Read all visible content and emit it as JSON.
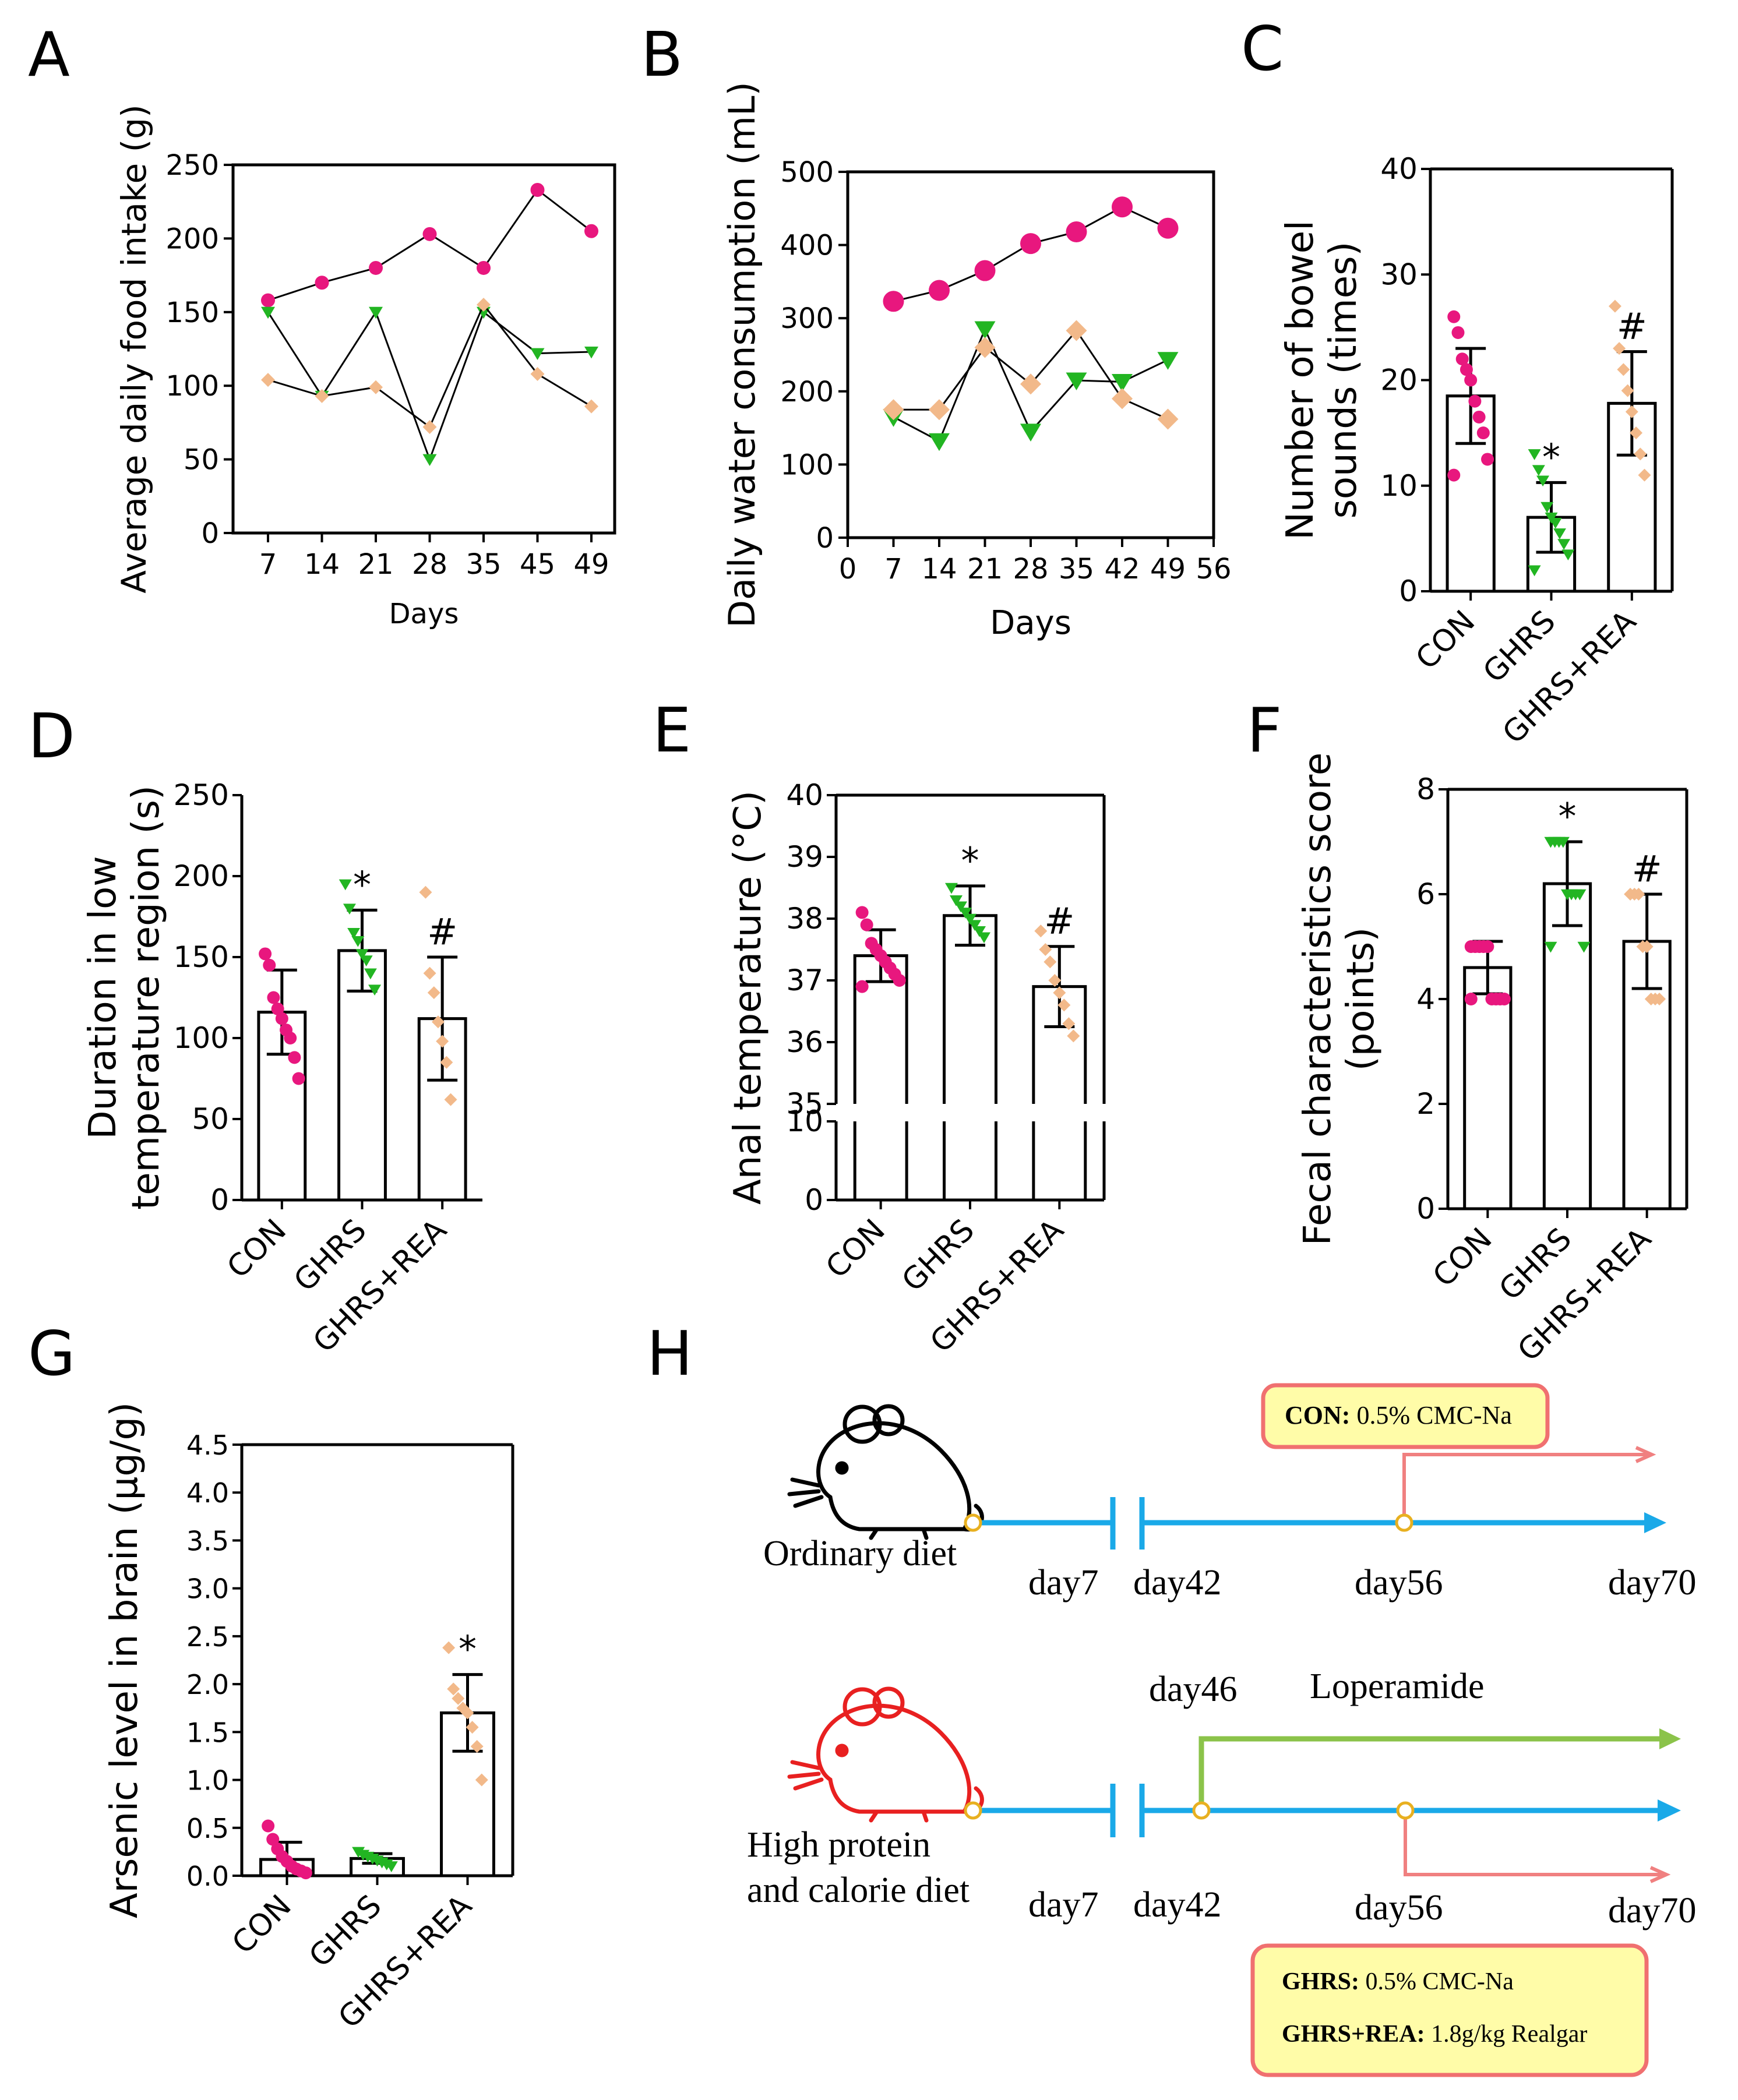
{
  "colors": {
    "con": "#e8177e",
    "ghrs": "#22b522",
    "rea": "#f2b98a",
    "axis": "#000000",
    "timeline": "#1aa9e8",
    "branch": "#f08080",
    "loperamide": "#8bc34a",
    "box_fill": "#fffca8",
    "box_border": "#f07070",
    "mouse_ordinary": "#000000",
    "mouse_high": "#e82020"
  },
  "chart_data": [
    {
      "panel": "A",
      "type": "line",
      "ylabel": "Average daily food intake (g)",
      "xlabel": "Days",
      "ylim": [
        0,
        250
      ],
      "yticks": [
        0,
        50,
        100,
        150,
        200,
        250
      ],
      "categories": [
        "7",
        "14",
        "21",
        "28",
        "35",
        "45",
        "49"
      ],
      "series": [
        {
          "name": "CON",
          "marker": "circle",
          "values": [
            158,
            170,
            180,
            203,
            180,
            233,
            205
          ]
        },
        {
          "name": "GHRS",
          "marker": "triangle",
          "values": [
            150,
            93,
            150,
            50,
            150,
            122,
            123
          ]
        },
        {
          "name": "GHRS+REA",
          "marker": "diamond",
          "values": [
            104,
            93,
            99,
            72,
            155,
            108,
            86
          ]
        }
      ]
    },
    {
      "panel": "B",
      "type": "line",
      "ylabel": "Daily water consumption (mL)",
      "xlabel": "Days",
      "ylim": [
        0,
        500
      ],
      "yticks": [
        0,
        100,
        200,
        300,
        400,
        500
      ],
      "xlim": [
        0,
        56
      ],
      "xticks": [
        0,
        7,
        14,
        21,
        28,
        35,
        42,
        49,
        56
      ],
      "series": [
        {
          "name": "CON",
          "marker": "circle",
          "x": [
            7,
            14,
            21,
            28,
            35,
            42,
            49
          ],
          "values": [
            323,
            338,
            365,
            402,
            418,
            452,
            423
          ]
        },
        {
          "name": "GHRS",
          "marker": "triangle",
          "x": [
            7,
            14,
            21,
            28,
            35,
            42,
            49
          ],
          "values": [
            165,
            132,
            285,
            145,
            215,
            213,
            243
          ]
        },
        {
          "name": "GHRS+REA",
          "marker": "diamond",
          "x": [
            7,
            14,
            21,
            28,
            35,
            42,
            49
          ],
          "values": [
            175,
            175,
            260,
            210,
            283,
            190,
            162
          ]
        }
      ]
    },
    {
      "panel": "C",
      "type": "bar",
      "ylabel": "Number of bowel sounds (times)",
      "ylim": [
        0,
        40
      ],
      "yticks": [
        0,
        10,
        20,
        30,
        40
      ],
      "categories": [
        "CON",
        "GHRS",
        "GHRS+REA"
      ],
      "values": [
        18.5,
        7,
        17.8
      ],
      "errors": [
        4.5,
        3.3,
        4.9
      ],
      "annotations": [
        "",
        "*",
        "#"
      ],
      "points": [
        [
          26,
          24.5,
          22,
          21,
          20,
          18,
          16.5,
          15,
          12.5,
          11
        ],
        [
          13,
          11.5,
          10.5,
          8,
          7,
          6.5,
          5.5,
          4.5,
          3.5,
          2
        ],
        [
          27,
          23,
          21,
          19,
          17,
          15,
          13,
          11
        ]
      ]
    },
    {
      "panel": "D",
      "type": "bar",
      "ylabel": "Duration in low temperature region (s)",
      "ylim": [
        0,
        250
      ],
      "yticks": [
        0,
        50,
        100,
        150,
        200,
        250
      ],
      "categories": [
        "CON",
        "GHRS",
        "GHRS+REA"
      ],
      "values": [
        116,
        154,
        112
      ],
      "errors": [
        26,
        25,
        38
      ],
      "annotations": [
        "",
        "*",
        "#"
      ],
      "points": [
        [
          152,
          145,
          125,
          118,
          112,
          105,
          100,
          88,
          75
        ],
        [
          195,
          180,
          165,
          160,
          152,
          148,
          140,
          130
        ],
        [
          190,
          140,
          128,
          110,
          98,
          85,
          62
        ]
      ]
    },
    {
      "panel": "E",
      "type": "bar",
      "broken_axis": true,
      "ylabel": "Anal temperature (°C)",
      "yticks_low": [
        0,
        10
      ],
      "yticks_high": [
        35,
        36,
        37,
        38,
        39,
        40
      ],
      "categories": [
        "CON",
        "GHRS",
        "GHRS+REA"
      ],
      "values": [
        37.4,
        38.05,
        36.9
      ],
      "errors": [
        0.42,
        0.48,
        0.65
      ],
      "annotations": [
        "",
        "*",
        "#"
      ],
      "points": [
        [
          38.1,
          37.9,
          37.6,
          37.5,
          37.4,
          37.3,
          37.2,
          37.1,
          37.0,
          36.9
        ],
        [
          38.5,
          38.3,
          38.2,
          38.1,
          38.0,
          37.9,
          37.8,
          37.7
        ],
        [
          37.8,
          37.5,
          37.3,
          37.0,
          36.8,
          36.6,
          36.3,
          36.1
        ]
      ]
    },
    {
      "panel": "F",
      "type": "bar",
      "ylabel": "Fecal characteristics score (points)",
      "ylim": [
        0,
        8
      ],
      "yticks": [
        0,
        2,
        4,
        6,
        8
      ],
      "categories": [
        "CON",
        "GHRS",
        "GHRS+REA"
      ],
      "values": [
        4.6,
        6.2,
        5.1
      ],
      "errors": [
        0.5,
        0.8,
        0.9
      ],
      "annotations": [
        "",
        "*",
        "#"
      ],
      "points": [
        [
          5,
          5,
          5,
          5,
          5,
          4,
          4,
          4,
          4,
          4
        ],
        [
          7,
          7,
          7,
          7,
          6,
          6,
          6,
          6,
          5,
          5
        ],
        [
          6,
          6,
          6,
          5,
          5,
          4,
          4,
          4
        ]
      ]
    },
    {
      "panel": "G",
      "type": "bar",
      "ylabel": "Arsenic level in brain (μg/g)",
      "ylim": [
        0,
        4.5
      ],
      "yticks": [
        "0.0",
        "0.5",
        "1.0",
        "1.5",
        "2.0",
        "2.5",
        "3.0",
        "3.5",
        "4.0",
        "4.5"
      ],
      "categories": [
        "CON",
        "GHRS",
        "GHRS+REA"
      ],
      "values": [
        0.17,
        0.18,
        1.7
      ],
      "errors": [
        0.18,
        0.05,
        0.4
      ],
      "annotations": [
        "",
        "",
        "*"
      ],
      "points": [
        [
          0.52,
          0.38,
          0.28,
          0.2,
          0.15,
          0.1,
          0.07,
          0.05,
          0.03
        ],
        [
          0.25,
          0.22,
          0.2,
          0.18,
          0.16,
          0.14,
          0.12,
          0.1
        ],
        [
          2.38,
          1.95,
          1.85,
          1.75,
          1.7,
          1.55,
          1.35,
          1.0
        ]
      ]
    }
  ],
  "panel_labels": [
    "A",
    "B",
    "C",
    "D",
    "E",
    "F",
    "G",
    "H"
  ],
  "timeline": {
    "con_box": {
      "label": "CON:",
      "text": " 0.5% CMC-Na"
    },
    "ordinary_label": "Ordinary diet",
    "top_days": [
      "day7",
      "day42",
      "day56",
      "day70"
    ],
    "day46": "day46",
    "loperamide": "Loperamide",
    "high_label_1": "High protein",
    "high_label_2": "and calorie diet",
    "bottom_days": [
      "day7",
      "day42",
      "day56",
      "day70"
    ],
    "ghrs_box_1": {
      "label": "GHRS:",
      "text": " 0.5% CMC-Na"
    },
    "ghrs_box_2": {
      "label": "GHRS+REA:",
      "text": " 1.8g/kg Realgar"
    }
  }
}
